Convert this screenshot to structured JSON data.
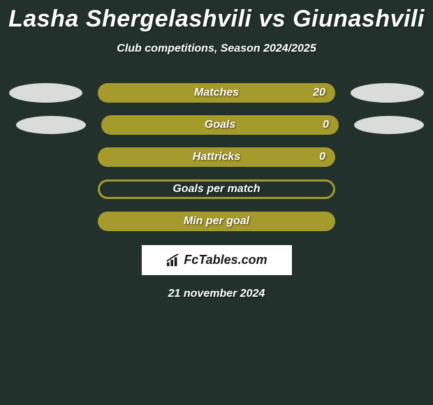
{
  "title": "Lasha Shergelashvili vs Giunashvili",
  "subtitle": "Club competitions, Season 2024/2025",
  "colors": {
    "background": "#22312b",
    "bar_fill": "#a59a2c",
    "bar_border": "#a59a2c",
    "ellipse": "#d9dcd8",
    "text": "#ffffff",
    "logo_bg": "#ffffff",
    "logo_text": "#1a1a1a"
  },
  "rows": [
    {
      "label": "Matches",
      "value": "20",
      "show_value": true,
      "left_ellipse": true,
      "right_ellipse": true,
      "ellipse_variant": 1,
      "fill": 1.0,
      "outline_only": false
    },
    {
      "label": "Goals",
      "value": "0",
      "show_value": true,
      "left_ellipse": true,
      "right_ellipse": true,
      "ellipse_variant": 2,
      "fill": 1.0,
      "outline_only": false
    },
    {
      "label": "Hattricks",
      "value": "0",
      "show_value": true,
      "left_ellipse": false,
      "right_ellipse": false,
      "ellipse_variant": 1,
      "fill": 1.0,
      "outline_only": false
    },
    {
      "label": "Goals per match",
      "value": "",
      "show_value": false,
      "left_ellipse": false,
      "right_ellipse": false,
      "ellipse_variant": 1,
      "fill": 1.0,
      "outline_only": true
    },
    {
      "label": "Min per goal",
      "value": "",
      "show_value": false,
      "left_ellipse": false,
      "right_ellipse": false,
      "ellipse_variant": 1,
      "fill": 1.0,
      "outline_only": false
    }
  ],
  "logo_text": "FcTables.com",
  "date": "21 november 2024"
}
